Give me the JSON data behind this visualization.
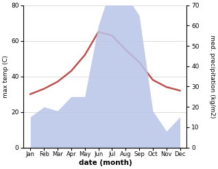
{
  "months": [
    "Jan",
    "Feb",
    "Mar",
    "Apr",
    "May",
    "Jun",
    "Jul",
    "Aug",
    "Sep",
    "Oct",
    "Nov",
    "Dec"
  ],
  "month_indices": [
    0,
    1,
    2,
    3,
    4,
    5,
    6,
    7,
    8,
    9,
    10,
    11
  ],
  "temperature": [
    30,
    33,
    37,
    43,
    52,
    65,
    63,
    55,
    48,
    38,
    34,
    32
  ],
  "precipitation": [
    15,
    20,
    18,
    25,
    25,
    60,
    80,
    75,
    65,
    18,
    8,
    15
  ],
  "temp_color": "#c0504d",
  "precip_fill_color": "#b8c4e8",
  "precip_fill_alpha": 0.85,
  "temp_ylim": [
    0,
    80
  ],
  "precip_ylim": [
    0,
    70
  ],
  "temp_yticks": [
    0,
    20,
    40,
    60,
    80
  ],
  "precip_yticks": [
    0,
    10,
    20,
    30,
    40,
    50,
    60,
    70
  ],
  "ylabel_left": "max temp (C)",
  "ylabel_right": "med. precipitation (kg/m2)",
  "xlabel": "date (month)",
  "background_color": "#ffffff",
  "linewidth": 1.8,
  "figwidth": 3.18,
  "figheight": 2.47,
  "dpi": 100
}
